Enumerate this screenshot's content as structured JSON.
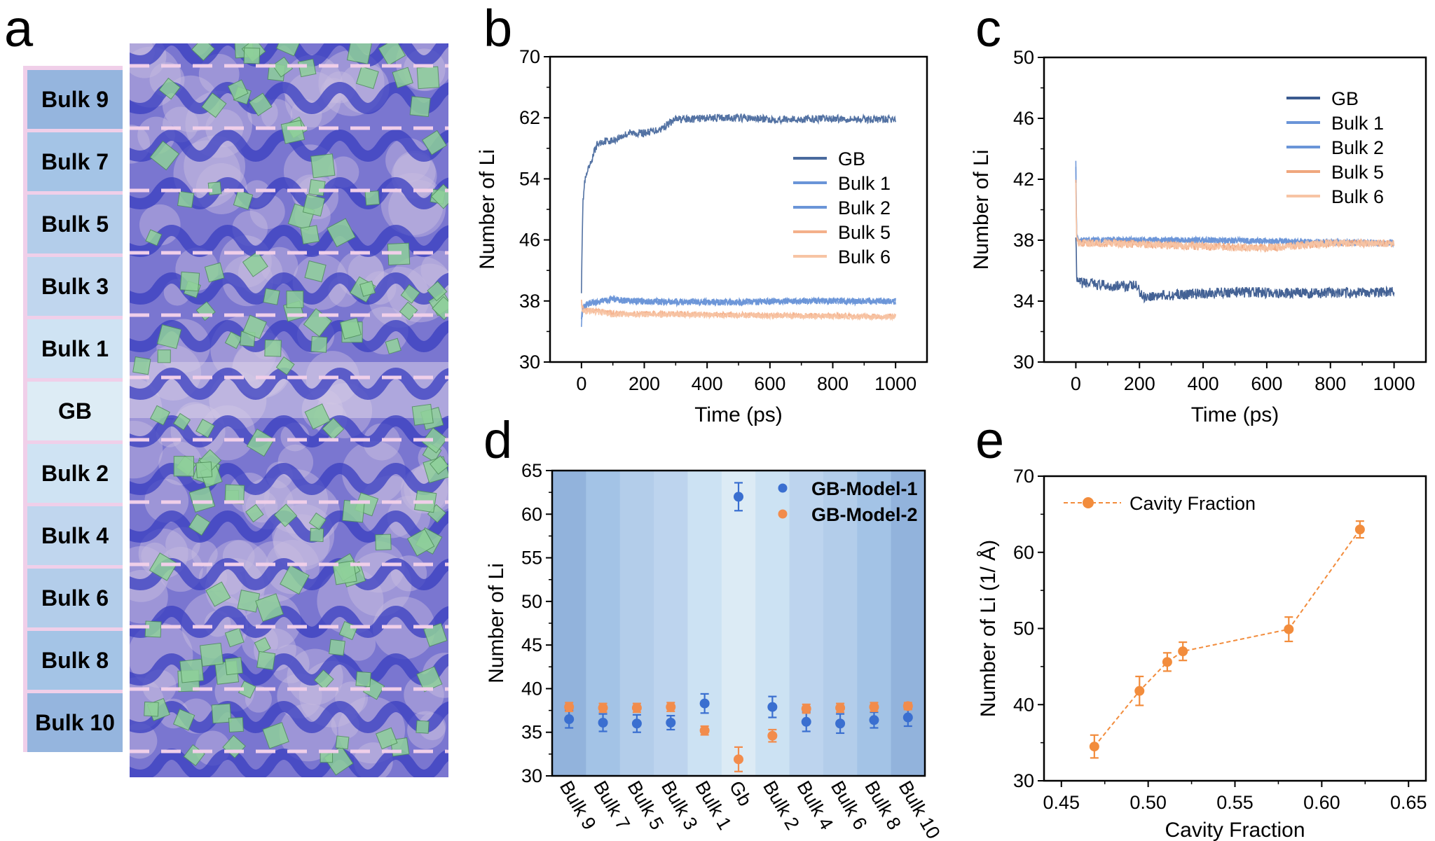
{
  "panel_letters": {
    "a": "a",
    "b": "b",
    "c": "c",
    "d": "d",
    "e": "e"
  },
  "panel_a": {
    "layers": [
      {
        "label": "Bulk 9",
        "color": "#95b5de"
      },
      {
        "label": "Bulk 7",
        "color": "#a4c4e6"
      },
      {
        "label": "Bulk 5",
        "color": "#b3cdea"
      },
      {
        "label": "Bulk 3",
        "color": "#c0d6ee"
      },
      {
        "label": "Bulk 1",
        "color": "#cfe3f3"
      },
      {
        "label": "GB",
        "color": "#ddecf5"
      },
      {
        "label": "Bulk 2",
        "color": "#cfe3f3"
      },
      {
        "label": "Bulk 4",
        "color": "#c0d6ee"
      },
      {
        "label": "Bulk 6",
        "color": "#b3cdea"
      },
      {
        "label": "Bulk  8",
        "color": "#a4c4e6"
      },
      {
        "label": "Bulk 10",
        "color": "#95b5de"
      }
    ],
    "divider_color": "#f0cfe9",
    "structure_colors": {
      "framework": "#3a3fc0",
      "polyhedra": "#8fd19a",
      "background": "#c8bde0"
    }
  },
  "chart_data": [
    {
      "id": "b",
      "type": "line",
      "title": "",
      "xlabel": "Time (ps)",
      "ylabel": "Number of Li",
      "xlim": [
        -100,
        1100
      ],
      "ylim": [
        30,
        70
      ],
      "xticks": [
        0,
        200,
        400,
        600,
        800,
        1000
      ],
      "yticks": [
        30,
        38,
        46,
        54,
        62,
        70
      ],
      "legend_position": "center-right",
      "series": [
        {
          "name": "GB",
          "color": "#4a6a9e",
          "x": [
            0,
            2,
            5,
            10,
            20,
            30,
            40,
            50,
            75,
            100,
            150,
            200,
            250,
            300,
            350,
            400,
            500,
            600,
            700,
            800,
            900,
            1000
          ],
          "y": [
            39.5,
            46,
            51,
            53.5,
            55,
            56,
            57.5,
            58.5,
            59,
            59,
            60,
            60,
            60.5,
            61.8,
            61.8,
            62,
            62,
            61.8,
            61.8,
            61.9,
            61.8,
            61.8
          ],
          "noise": 0.5
        },
        {
          "name": "Bulk 1",
          "color": "#6a95d8",
          "x": [
            0,
            5,
            20,
            100,
            150,
            300,
            500,
            700,
            1000
          ],
          "y": [
            35,
            37,
            37.5,
            38.3,
            38,
            37.8,
            37.8,
            38.0,
            37.9
          ],
          "noise": 0.4
        },
        {
          "name": "Bulk 2",
          "color": "#6a95d8",
          "x": [
            0,
            5,
            20,
            100,
            150,
            300,
            500,
            700,
            1000
          ],
          "y": [
            36,
            37.3,
            37.7,
            38.2,
            38.0,
            37.9,
            37.9,
            38.0,
            38.0
          ],
          "noise": 0.4
        },
        {
          "name": "Bulk 5",
          "color": "#f4b08a",
          "x": [
            0,
            2,
            10,
            40,
            100,
            300,
            500,
            700,
            1000
          ],
          "y": [
            38.5,
            37,
            36.8,
            36.8,
            36.4,
            36.3,
            36.2,
            36.1,
            36.0
          ],
          "noise": 0.35
        },
        {
          "name": "Bulk 6",
          "color": "#f7c4a4",
          "x": [
            0,
            2,
            10,
            40,
            100,
            300,
            500,
            700,
            1000
          ],
          "y": [
            38,
            36.8,
            36.6,
            36.6,
            36.2,
            36.2,
            36.1,
            36.0,
            35.9
          ],
          "noise": 0.35
        }
      ]
    },
    {
      "id": "c",
      "type": "line",
      "title": "",
      "xlabel": "Time (ps)",
      "ylabel": "Number of Li",
      "xlim": [
        -100,
        1100
      ],
      "ylim": [
        30,
        50
      ],
      "xticks": [
        0,
        200,
        400,
        600,
        800,
        1000
      ],
      "yticks": [
        30,
        34,
        38,
        42,
        46,
        50
      ],
      "legend_position": "top-right",
      "series": [
        {
          "name": "GB",
          "color": "#3a5a8f",
          "x": [
            0,
            3,
            6,
            20,
            100,
            190,
            210,
            300,
            500,
            700,
            1000
          ],
          "y": [
            38.5,
            35.2,
            35.2,
            35.2,
            35.0,
            35.0,
            34.3,
            34.4,
            34.6,
            34.5,
            34.6
          ],
          "noise": 0.35
        },
        {
          "name": "Bulk 1",
          "color": "#6a95d8",
          "x": [
            0,
            2,
            8,
            100,
            400,
            700,
            1000
          ],
          "y": [
            43.4,
            38.5,
            38.0,
            38.0,
            38.0,
            37.9,
            37.8
          ],
          "noise": 0.2
        },
        {
          "name": "Bulk 2",
          "color": "#6a95d8",
          "x": [
            0,
            2,
            8,
            100,
            400,
            700,
            1000
          ],
          "y": [
            43.0,
            38.4,
            38.0,
            38.0,
            38.0,
            37.9,
            37.8
          ],
          "noise": 0.2
        },
        {
          "name": "Bulk 5",
          "color": "#f0a77e",
          "x": [
            0,
            2,
            8,
            100,
            400,
            600,
            800,
            1000
          ],
          "y": [
            42.2,
            38.5,
            37.8,
            37.8,
            37.6,
            37.5,
            37.8,
            37.8
          ],
          "noise": 0.25
        },
        {
          "name": "Bulk 6",
          "color": "#f7c4a4",
          "x": [
            0,
            2,
            8,
            100,
            400,
            600,
            800,
            1000
          ],
          "y": [
            42.0,
            38.3,
            37.8,
            37.8,
            37.6,
            37.5,
            37.8,
            37.8
          ],
          "noise": 0.25
        }
      ]
    },
    {
      "id": "d",
      "type": "scatter",
      "title": "",
      "xlabel": "",
      "ylabel": "Number of Li",
      "ylim": [
        30,
        65
      ],
      "yticks": [
        30,
        35,
        40,
        45,
        50,
        55,
        60,
        65
      ],
      "categories": [
        "Bulk 9",
        "Bulk 7",
        "Bulk 5",
        "Bulk 3",
        "Bulk 1",
        "Gb",
        "Bulk 2",
        "Bulk 4",
        "Bulk 6",
        "Bulk 8",
        "Bulk 10"
      ],
      "band_colors": [
        "#92b3dc",
        "#a3c3e6",
        "#b3cdea",
        "#bdd4ee",
        "#cce2f3",
        "#dcebf5",
        "#cce2f3",
        "#bdd4ee",
        "#b3cdea",
        "#a3c3e6",
        "#92b3dc"
      ],
      "legend_position": "top-right",
      "series": [
        {
          "name": "GB-Model-1",
          "color": "#3a6fd0",
          "values": [
            36.5,
            36.1,
            36.0,
            36.1,
            38.3,
            62.0,
            37.9,
            36.2,
            36.0,
            36.4,
            36.7
          ],
          "errors": [
            1.0,
            1.0,
            1.0,
            0.8,
            1.1,
            1.6,
            1.2,
            1.1,
            1.1,
            0.9,
            1.0
          ]
        },
        {
          "name": "GB-Model-2",
          "color": "#f28c4c",
          "values": [
            37.9,
            37.8,
            37.8,
            37.9,
            35.2,
            31.9,
            34.6,
            37.7,
            37.8,
            37.9,
            38.0
          ],
          "errors": [
            0.5,
            0.5,
            0.5,
            0.5,
            0.5,
            1.4,
            0.7,
            0.5,
            0.5,
            0.5,
            0.4
          ]
        }
      ]
    },
    {
      "id": "e",
      "type": "scatter",
      "title": "",
      "xlabel": "Cavity Fraction",
      "ylabel": "Number of Li (1/ Å)",
      "xlim": [
        0.44,
        0.66
      ],
      "ylim": [
        30,
        70
      ],
      "xticks": [
        0.45,
        0.5,
        0.55,
        0.6,
        0.65
      ],
      "xtick_labels": [
        "0.45",
        "0.50",
        "0.55",
        "0.60",
        "0.65"
      ],
      "yticks": [
        30,
        40,
        50,
        60,
        70
      ],
      "legend_position": "top-left",
      "legend_text_color": "#6e8b4a",
      "series": [
        {
          "name": "Cavity Fraction",
          "color": "#f28c3c",
          "line_style": "dashed",
          "x": [
            0.469,
            0.495,
            0.511,
            0.52,
            0.581,
            0.622
          ],
          "y": [
            34.5,
            41.8,
            45.6,
            47.0,
            49.9,
            63.0
          ],
          "errors": [
            1.5,
            1.9,
            1.2,
            1.2,
            1.6,
            1.1
          ]
        }
      ]
    }
  ]
}
